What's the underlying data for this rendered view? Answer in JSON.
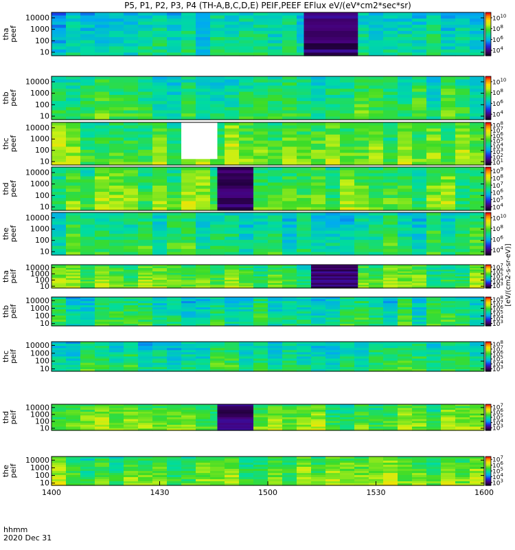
{
  "chart_data": {
    "type": "heatmap",
    "title": "P5, P1, P2, P3, P4 (TH-A,B,C,D,E) PEIF,PEEF EFlux eV/(eV*cm2*sec*sr)",
    "x_axis": {
      "label": "hhmm",
      "sublabel": "2020 Dec 31",
      "range": [
        "1400",
        "1600"
      ],
      "ticks": [
        "1400",
        "1430",
        "1500",
        "1530",
        "1600"
      ]
    },
    "colorbar_label": "[eV/(cm2-s-sr-eV)]",
    "panels": [
      {
        "name": "tha peef",
        "ylabel": [
          "tha",
          "peef"
        ],
        "yticks": [
          "10",
          "100",
          "1000",
          "10000"
        ],
        "ylim": [
          5,
          30000
        ],
        "scale": "log",
        "colorbar_ticks": [
          "10^4",
          "10^6",
          "10^8",
          "10^10"
        ],
        "black_gap": [
          1510,
          1525
        ]
      },
      {
        "name": "thb peef",
        "ylabel": [
          "thb",
          "peef"
        ],
        "yticks": [
          "10",
          "100",
          "1000",
          "10000"
        ],
        "ylim": [
          5,
          30000
        ],
        "scale": "log",
        "colorbar_ticks": [
          "10^4",
          "10^6",
          "10^8",
          "10^10"
        ]
      },
      {
        "name": "thc peef",
        "ylabel": [
          "thc",
          "peef"
        ],
        "yticks": [
          "10",
          "100",
          "1000",
          "10000"
        ],
        "ylim": [
          5,
          30000
        ],
        "scale": "log",
        "colorbar_ticks": [
          "10^1",
          "10^2",
          "10^3",
          "10^4",
          "10^5",
          "10^6",
          "10^7",
          "10^8"
        ],
        "white_gap": [
          1436,
          1446
        ]
      },
      {
        "name": "thd peef",
        "ylabel": [
          "thd",
          "peef"
        ],
        "yticks": [
          "10",
          "100",
          "1000",
          "10000"
        ],
        "ylim": [
          5,
          30000
        ],
        "scale": "log",
        "colorbar_ticks": [
          "10^4",
          "10^5",
          "10^6",
          "10^7",
          "10^8",
          "10^9"
        ],
        "black_gap": [
          1446,
          1456
        ]
      },
      {
        "name": "the peef",
        "ylabel": [
          "the",
          "peef"
        ],
        "yticks": [
          "10",
          "100",
          "1000",
          "10000"
        ],
        "ylim": [
          5,
          30000
        ],
        "scale": "log",
        "colorbar_ticks": [
          "10^4",
          "10^6",
          "10^8",
          "10^10"
        ]
      },
      {
        "name": "tha peif",
        "ylabel": [
          "tha",
          "peif"
        ],
        "yticks": [
          "10",
          "100",
          "1000",
          "10000"
        ],
        "ylim": [
          5,
          30000
        ],
        "scale": "log",
        "colorbar_ticks": [
          "10^3",
          "10^4",
          "10^5",
          "10^6",
          "10^7"
        ],
        "black_gap": [
          1512,
          1525
        ]
      },
      {
        "name": "thb peif",
        "ylabel": [
          "thb",
          "peif"
        ],
        "yticks": [
          "10",
          "100",
          "1000",
          "10000"
        ],
        "ylim": [
          5,
          30000
        ],
        "scale": "log",
        "colorbar_ticks": [
          "10^3",
          "10^4",
          "10^5",
          "10^6",
          "10^7",
          "10^8"
        ]
      },
      {
        "name": "thc peif",
        "ylabel": [
          "thc",
          "peif"
        ],
        "yticks": [
          "10",
          "100",
          "1000",
          "10000"
        ],
        "ylim": [
          5,
          30000
        ],
        "scale": "log",
        "colorbar_ticks": [
          "10^3",
          "10^4",
          "10^5",
          "10^6",
          "10^7",
          "10^8"
        ]
      },
      {
        "name": "thd peif",
        "ylabel": [
          "thd",
          "peif"
        ],
        "yticks": [
          "10",
          "100",
          "1000",
          "10000"
        ],
        "ylim": [
          5,
          30000
        ],
        "scale": "log",
        "colorbar_ticks": [
          "10^3",
          "10^4",
          "10^5",
          "10^6",
          "10^7"
        ],
        "black_gap": [
          1446,
          1456
        ]
      },
      {
        "name": "the peif",
        "ylabel": [
          "the",
          "peif"
        ],
        "yticks": [
          "10",
          "100",
          "1000",
          "10000"
        ],
        "ylim": [
          5,
          30000
        ],
        "scale": "log",
        "colorbar_ticks": [
          "10^3",
          "10^4",
          "10^5",
          "10^6",
          "10^7"
        ]
      }
    ]
  }
}
